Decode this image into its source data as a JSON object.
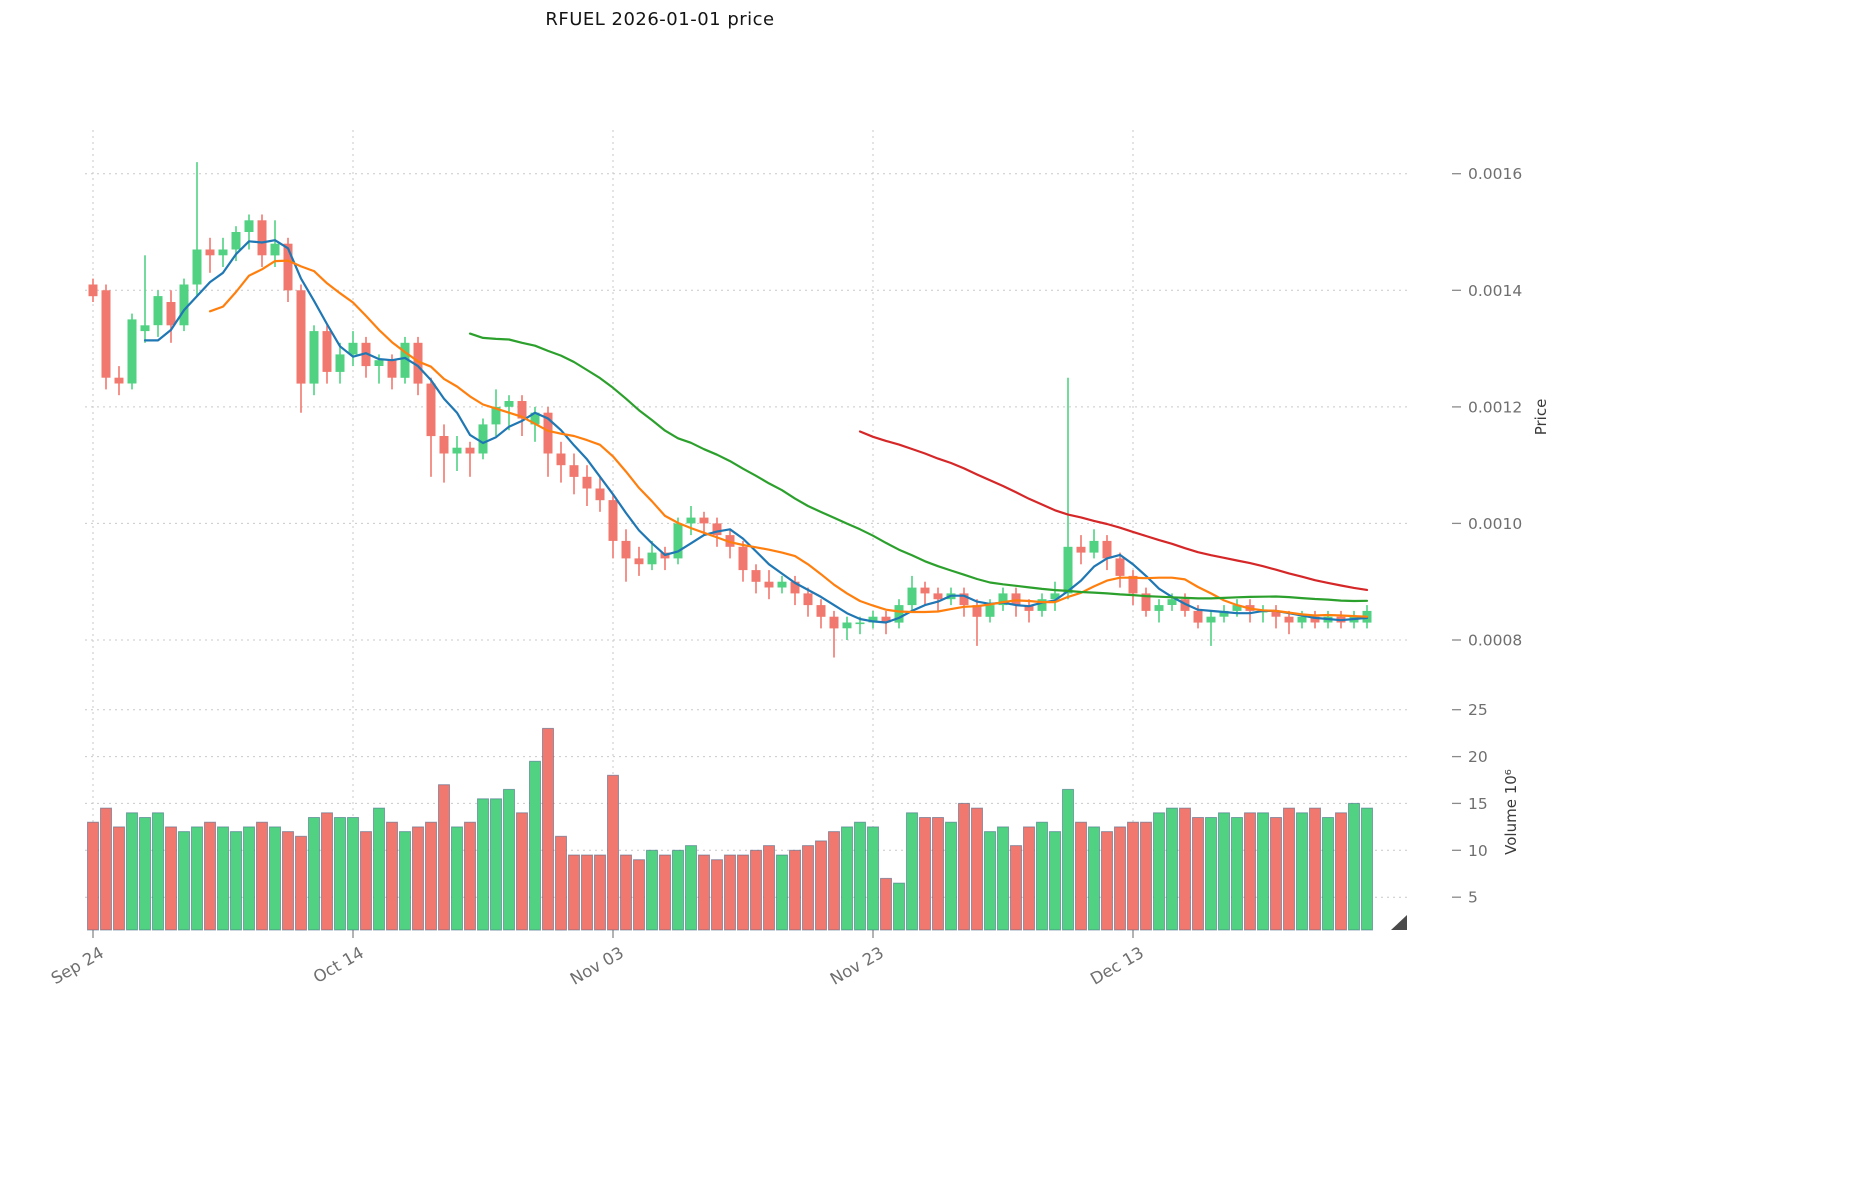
{
  "title": "RFUEL  2026-01-01  price",
  "chart_data": {
    "type": "candlestick",
    "title": "RFUEL  2026-01-01  price",
    "grid": "dashed",
    "legend_position": "none",
    "x_axis": {
      "num_candles": 99,
      "tick_labels": [
        {
          "index": 0,
          "label": "Sep 24"
        },
        {
          "index": 20,
          "label": "Oct 14"
        },
        {
          "index": 40,
          "label": "Nov 03"
        },
        {
          "index": 60,
          "label": "Nov 23"
        },
        {
          "index": 80,
          "label": "Dec 13"
        }
      ]
    },
    "price_axis": {
      "label": "Price",
      "side": "right",
      "range": [
        0.00074,
        0.001675
      ],
      "ticks": [
        {
          "value": 0.0008,
          "label": "0.0008"
        },
        {
          "value": 0.001,
          "label": "0.0010"
        },
        {
          "value": 0.0012,
          "label": "0.0012"
        },
        {
          "value": 0.0014,
          "label": "0.0014"
        },
        {
          "value": 0.0016,
          "label": "0.0016"
        }
      ]
    },
    "volume_axis": {
      "label": "Volume  10⁶",
      "side": "right",
      "range": [
        1.5,
        25.5
      ],
      "ticks": [
        {
          "value": 5,
          "label": "5"
        },
        {
          "value": 10,
          "label": "10"
        },
        {
          "value": 15,
          "label": "15"
        },
        {
          "value": 20,
          "label": "20"
        },
        {
          "value": 25,
          "label": "25"
        }
      ]
    },
    "ohlc": {
      "open": [
        0.00141,
        0.0014,
        0.00125,
        0.00124,
        0.00133,
        0.00134,
        0.00138,
        0.00134,
        0.00141,
        0.00147,
        0.00146,
        0.00147,
        0.0015,
        0.00152,
        0.00146,
        0.00148,
        0.0014,
        0.00124,
        0.00133,
        0.00126,
        0.00129,
        0.00131,
        0.00127,
        0.00128,
        0.00125,
        0.00131,
        0.00124,
        0.00115,
        0.00112,
        0.00113,
        0.00112,
        0.00117,
        0.0012,
        0.00121,
        0.00117,
        0.00119,
        0.00112,
        0.0011,
        0.00108,
        0.00106,
        0.00104,
        0.00097,
        0.00094,
        0.00093,
        0.00095,
        0.00094,
        0.001,
        0.00101,
        0.001,
        0.00098,
        0.00096,
        0.00092,
        0.0009,
        0.00089,
        0.0009,
        0.00088,
        0.00086,
        0.00084,
        0.00082,
        0.00083,
        0.00083,
        0.00084,
        0.00083,
        0.00086,
        0.00089,
        0.00088,
        0.00087,
        0.00088,
        0.00086,
        0.00084,
        0.00086,
        0.00088,
        0.00086,
        0.00085,
        0.00087,
        0.00088,
        0.00096,
        0.00095,
        0.00097,
        0.00094,
        0.00091,
        0.00088,
        0.00085,
        0.00086,
        0.00087,
        0.00085,
        0.00083,
        0.00084,
        0.00085,
        0.00086,
        0.00085,
        0.00085,
        0.00084,
        0.00083,
        0.00084,
        0.00083,
        0.00084,
        0.00083,
        0.00083
      ],
      "high": [
        0.00142,
        0.00141,
        0.00127,
        0.00136,
        0.00146,
        0.0014,
        0.0014,
        0.00142,
        0.00162,
        0.00149,
        0.00149,
        0.00151,
        0.00153,
        0.00153,
        0.00152,
        0.00149,
        0.00141,
        0.00134,
        0.00134,
        0.00131,
        0.00133,
        0.00132,
        0.00129,
        0.00129,
        0.00132,
        0.00132,
        0.00125,
        0.00117,
        0.00115,
        0.00114,
        0.00118,
        0.00123,
        0.00122,
        0.00122,
        0.0012,
        0.0012,
        0.00114,
        0.00112,
        0.0011,
        0.00108,
        0.00105,
        0.00099,
        0.00096,
        0.00097,
        0.00096,
        0.00101,
        0.00103,
        0.00102,
        0.00101,
        0.00099,
        0.00097,
        0.00093,
        0.00092,
        0.00091,
        0.00091,
        0.00089,
        0.00087,
        0.00085,
        0.00084,
        0.00084,
        0.00085,
        0.00085,
        0.00087,
        0.00091,
        0.0009,
        0.00089,
        0.00089,
        0.00089,
        0.00087,
        0.00087,
        0.00089,
        0.00089,
        0.00087,
        0.00088,
        0.0009,
        0.00125,
        0.00098,
        0.00099,
        0.00098,
        0.00095,
        0.00092,
        0.00089,
        0.00087,
        0.00088,
        0.00088,
        0.00086,
        0.00085,
        0.00086,
        0.00087,
        0.00087,
        0.00086,
        0.00086,
        0.00085,
        0.00085,
        0.00085,
        0.00085,
        0.00085,
        0.00085,
        0.00086
      ],
      "low": [
        0.00138,
        0.00123,
        0.00122,
        0.00123,
        0.00131,
        0.00132,
        0.00131,
        0.00133,
        0.00139,
        0.00143,
        0.00144,
        0.00145,
        0.00147,
        0.00144,
        0.00144,
        0.00138,
        0.00119,
        0.00122,
        0.00124,
        0.00124,
        0.00127,
        0.00125,
        0.00124,
        0.00123,
        0.00124,
        0.00122,
        0.00108,
        0.00107,
        0.00109,
        0.00108,
        0.00111,
        0.00115,
        0.00116,
        0.00115,
        0.00114,
        0.00108,
        0.00107,
        0.00105,
        0.00103,
        0.00102,
        0.00094,
        0.0009,
        0.00091,
        0.00092,
        0.00092,
        0.00093,
        0.00098,
        0.00098,
        0.00096,
        0.00094,
        0.0009,
        0.00088,
        0.00087,
        0.00088,
        0.00086,
        0.00084,
        0.00082,
        0.00077,
        0.0008,
        0.00081,
        0.00082,
        0.00081,
        0.00082,
        0.00085,
        0.00086,
        0.00085,
        0.00086,
        0.00084,
        0.00079,
        0.00083,
        0.00085,
        0.00084,
        0.00083,
        0.00084,
        0.00085,
        0.00087,
        0.00093,
        0.00094,
        0.00092,
        0.00089,
        0.00086,
        0.00084,
        0.00083,
        0.00085,
        0.00084,
        0.00082,
        0.00079,
        0.00083,
        0.00084,
        0.00083,
        0.00083,
        0.00082,
        0.00081,
        0.00082,
        0.00082,
        0.00082,
        0.00082,
        0.00082,
        0.00082
      ],
      "close": [
        0.00139,
        0.00125,
        0.00124,
        0.00135,
        0.00134,
        0.00139,
        0.00134,
        0.00141,
        0.00147,
        0.00146,
        0.00147,
        0.0015,
        0.00152,
        0.00146,
        0.00148,
        0.0014,
        0.00124,
        0.00133,
        0.00126,
        0.00129,
        0.00131,
        0.00127,
        0.00128,
        0.00125,
        0.00131,
        0.00124,
        0.00115,
        0.00112,
        0.00113,
        0.00112,
        0.00117,
        0.0012,
        0.00121,
        0.00118,
        0.00119,
        0.00112,
        0.0011,
        0.00108,
        0.00106,
        0.00104,
        0.00097,
        0.00094,
        0.00093,
        0.00095,
        0.00094,
        0.001,
        0.00101,
        0.001,
        0.00098,
        0.00096,
        0.00092,
        0.0009,
        0.00089,
        0.0009,
        0.00088,
        0.00086,
        0.00084,
        0.00082,
        0.00083,
        0.00083,
        0.00084,
        0.00083,
        0.00086,
        0.00089,
        0.00088,
        0.00087,
        0.00088,
        0.00086,
        0.00084,
        0.00086,
        0.00088,
        0.00086,
        0.00085,
        0.00087,
        0.00088,
        0.00096,
        0.00095,
        0.00097,
        0.00094,
        0.00091,
        0.00088,
        0.00085,
        0.00086,
        0.00087,
        0.00085,
        0.00083,
        0.00084,
        0.00085,
        0.00086,
        0.00085,
        0.00085,
        0.00084,
        0.00083,
        0.00084,
        0.00083,
        0.00084,
        0.00083,
        0.00084,
        0.00085
      ]
    },
    "volume_millions": [
      13,
      14.5,
      12.5,
      14,
      13.5,
      14,
      12.5,
      12,
      12.5,
      13,
      12.5,
      12,
      12.5,
      13,
      12.5,
      12,
      11.5,
      13.5,
      14,
      13.5,
      13.5,
      12,
      14.5,
      13,
      12,
      12.5,
      13,
      17,
      12.5,
      13,
      15.5,
      15.5,
      16.5,
      14,
      19.5,
      23,
      11.5,
      9.5,
      9.5,
      9.5,
      18,
      9.5,
      9,
      10,
      9.5,
      10,
      10.5,
      9.5,
      9,
      9.5,
      9.5,
      10,
      10.5,
      9.5,
      10,
      10.5,
      11,
      12,
      12.5,
      13,
      12.5,
      7,
      6.5,
      14,
      13.5,
      13.5,
      13,
      15,
      14.5,
      12,
      12.5,
      10.5,
      12.5,
      13,
      12,
      16.5,
      13,
      12.5,
      12,
      12.5,
      13,
      13,
      14,
      14.5,
      14.5,
      13.5,
      13.5,
      14,
      13.5,
      14,
      14,
      13.5,
      14.5,
      14,
      14.5,
      13.5,
      14,
      15,
      14.5
    ],
    "moving_averages": [
      {
        "name": "ma-fast",
        "window": 5,
        "color": "#1f77b4"
      },
      {
        "name": "ma-medium",
        "window": 10,
        "color": "#ff7f0e"
      },
      {
        "name": "ma-slow",
        "window": 30,
        "color": "#2ca02c"
      },
      {
        "name": "ma-slowest",
        "window": 60,
        "color": "#d62728"
      }
    ],
    "colors": {
      "up": "#50d282",
      "down": "#f0786e",
      "volume_bar_edge": "#46688a",
      "grid": "#c9c9c9",
      "tick_text": "#6f6f6f",
      "tick_mark": "#8a8a8a",
      "axis_label_text": "#3a3a3a",
      "title_text": "#141414"
    }
  }
}
